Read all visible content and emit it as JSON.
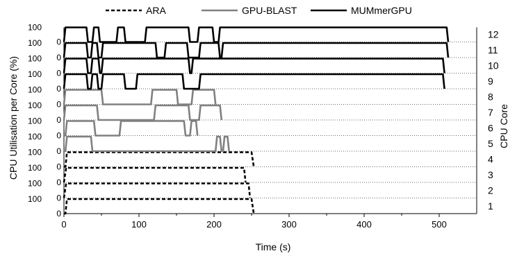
{
  "chart_data": {
    "type": "line",
    "xlabel": "Time (s)",
    "ylabel": "CPU Utilisation per Core (%)",
    "ylabel_right": "CPU Core",
    "xlim": [
      0,
      550
    ],
    "x_ticks": [
      0,
      100,
      200,
      300,
      400,
      500
    ],
    "row_ylim": [
      0,
      100
    ],
    "row_tick_labels": [
      "0",
      "100"
    ],
    "grid": "dotted row baselines",
    "legend_position": "top",
    "legend": [
      {
        "name": "ARA",
        "style": "dashed",
        "color": "#000000"
      },
      {
        "name": "GPU-BLAST",
        "style": "solid",
        "color": "#808080"
      },
      {
        "name": "MUMmerGPU",
        "style": "solid",
        "color": "#000000"
      }
    ],
    "series": [
      {
        "name": "ARA",
        "color": "#000000",
        "dash": true,
        "rows": [
          {
            "core": "1",
            "points": [
              [
                0,
                0
              ],
              [
                2,
                0
              ],
              [
                4,
                100
              ],
              [
                250,
                100
              ],
              [
                253,
                0
              ]
            ]
          },
          {
            "core": "2",
            "points": [
              [
                0,
                0
              ],
              [
                3,
                100
              ],
              [
                246,
                100
              ],
              [
                248,
                0
              ]
            ]
          },
          {
            "core": "3",
            "points": [
              [
                0,
                0
              ],
              [
                3,
                100
              ],
              [
                240,
                100
              ],
              [
                242,
                0
              ]
            ]
          },
          {
            "core": "4",
            "points": [
              [
                0,
                0
              ],
              [
                2,
                0
              ],
              [
                4,
                100
              ],
              [
                250,
                100
              ],
              [
                253,
                0
              ]
            ]
          }
        ]
      },
      {
        "name": "GPU-BLAST",
        "color": "#808080",
        "dash": false,
        "rows": [
          {
            "core": "5",
            "points": [
              [
                0,
                0
              ],
              [
                2,
                0
              ],
              [
                4,
                100
              ],
              [
                36,
                100
              ],
              [
                38,
                0
              ],
              [
                202,
                0
              ],
              [
                204,
                100
              ],
              [
                208,
                100
              ],
              [
                210,
                0
              ],
              [
                212,
                0
              ],
              [
                214,
                100
              ],
              [
                218,
                100
              ],
              [
                220,
                0
              ]
            ]
          },
          {
            "core": "6",
            "points": [
              [
                0,
                0
              ],
              [
                2,
                0
              ],
              [
                4,
                100
              ],
              [
                40,
                100
              ],
              [
                42,
                0
              ],
              [
                74,
                0
              ],
              [
                76,
                100
              ],
              [
                160,
                100
              ],
              [
                162,
                0
              ],
              [
                168,
                0
              ],
              [
                170,
                100
              ],
              [
                176,
                100
              ],
              [
                178,
                0
              ]
            ]
          },
          {
            "core": "7",
            "points": [
              [
                0,
                0
              ],
              [
                2,
                100
              ],
              [
                44,
                100
              ],
              [
                46,
                0
              ],
              [
                120,
                0
              ],
              [
                122,
                100
              ],
              [
                166,
                100
              ],
              [
                168,
                0
              ],
              [
                180,
                0
              ],
              [
                182,
                100
              ],
              [
                208,
                100
              ],
              [
                210,
                0
              ]
            ]
          },
          {
            "core": "8",
            "points": [
              [
                0,
                0
              ],
              [
                2,
                100
              ],
              [
                50,
                100
              ],
              [
                52,
                0
              ],
              [
                116,
                0
              ],
              [
                118,
                100
              ],
              [
                150,
                100
              ],
              [
                152,
                0
              ],
              [
                170,
                0
              ],
              [
                172,
                100
              ],
              [
                200,
                100
              ],
              [
                202,
                0
              ]
            ]
          }
        ]
      },
      {
        "name": "MUMmerGPU",
        "color": "#000000",
        "dash": false,
        "rows": [
          {
            "core": "9",
            "points": [
              [
                0,
                0
              ],
              [
                2,
                100
              ],
              [
                30,
                100
              ],
              [
                32,
                0
              ],
              [
                36,
                0
              ],
              [
                38,
                100
              ],
              [
                44,
                100
              ],
              [
                46,
                0
              ],
              [
                50,
                0
              ],
              [
                52,
                100
              ],
              [
                80,
                100
              ],
              [
                82,
                0
              ],
              [
                96,
                0
              ],
              [
                98,
                100
              ],
              [
                158,
                100
              ],
              [
                160,
                0
              ],
              [
                180,
                0
              ],
              [
                182,
                100
              ],
              [
                505,
                100
              ],
              [
                507,
                0
              ]
            ]
          },
          {
            "core": "10",
            "points": [
              [
                0,
                0
              ],
              [
                2,
                100
              ],
              [
                30,
                100
              ],
              [
                32,
                0
              ],
              [
                36,
                0
              ],
              [
                38,
                100
              ],
              [
                46,
                100
              ],
              [
                48,
                0
              ],
              [
                50,
                0
              ],
              [
                52,
                100
              ],
              [
                166,
                100
              ],
              [
                168,
                0
              ],
              [
                170,
                0
              ],
              [
                172,
                100
              ],
              [
                505,
                100
              ],
              [
                507,
                0
              ]
            ]
          },
          {
            "core": "11",
            "points": [
              [
                0,
                0
              ],
              [
                2,
                100
              ],
              [
                30,
                100
              ],
              [
                32,
                0
              ],
              [
                36,
                0
              ],
              [
                38,
                100
              ],
              [
                44,
                100
              ],
              [
                46,
                0
              ],
              [
                50,
                0
              ],
              [
                52,
                100
              ],
              [
                122,
                100
              ],
              [
                124,
                0
              ],
              [
                134,
                0
              ],
              [
                136,
                100
              ],
              [
                164,
                100
              ],
              [
                166,
                0
              ],
              [
                180,
                0
              ],
              [
                182,
                100
              ],
              [
                206,
                100
              ],
              [
                208,
                0
              ],
              [
                210,
                0
              ],
              [
                212,
                100
              ],
              [
                510,
                100
              ],
              [
                512,
                0
              ]
            ]
          },
          {
            "core": "12",
            "points": [
              [
                0,
                0
              ],
              [
                2,
                100
              ],
              [
                30,
                100
              ],
              [
                32,
                0
              ],
              [
                38,
                0
              ],
              [
                40,
                100
              ],
              [
                46,
                100
              ],
              [
                48,
                0
              ],
              [
                70,
                0
              ],
              [
                72,
                100
              ],
              [
                80,
                100
              ],
              [
                82,
                0
              ],
              [
                108,
                0
              ],
              [
                110,
                100
              ],
              [
                166,
                100
              ],
              [
                168,
                0
              ],
              [
                178,
                0
              ],
              [
                180,
                100
              ],
              [
                198,
                100
              ],
              [
                200,
                0
              ],
              [
                206,
                0
              ],
              [
                208,
                100
              ],
              [
                510,
                100
              ],
              [
                512,
                0
              ]
            ]
          }
        ]
      }
    ]
  }
}
